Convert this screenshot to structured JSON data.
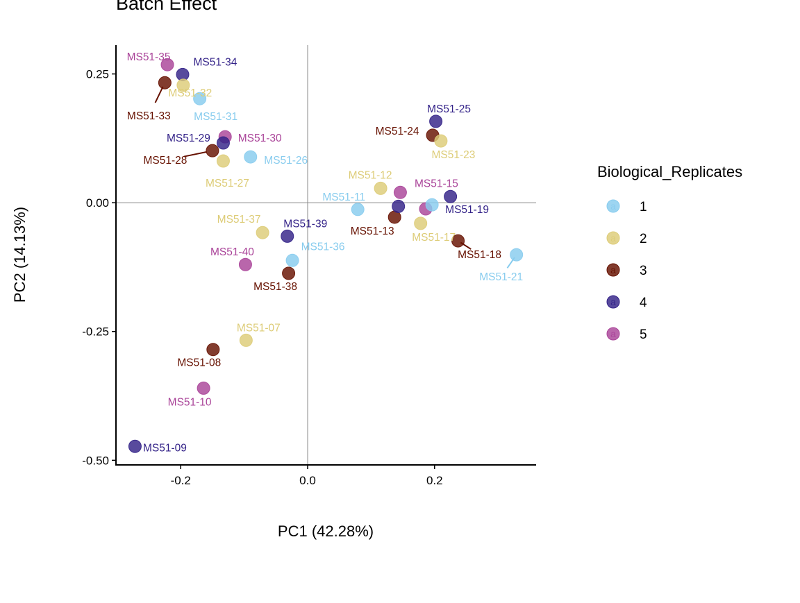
{
  "chart_data": {
    "type": "scatter",
    "title": "Batch Effect",
    "xlabel": "PC1 (42.28%)",
    "ylabel": "PC2 (14.13%)",
    "xlim": [
      -0.302,
      0.36
    ],
    "ylim": [
      -0.509,
      0.306
    ],
    "xticks": [
      -0.2,
      0.0,
      0.2
    ],
    "xtick_labels": [
      "-0.2",
      "0.0",
      "0.2"
    ],
    "yticks": [
      0.25,
      0.0,
      -0.25,
      -0.5
    ],
    "ytick_labels": [
      "0.25",
      "0.00",
      "-0.25",
      "-0.50"
    ],
    "reference_lines": {
      "x": 0,
      "y": 0
    },
    "grid": false,
    "legend": {
      "title": "Biological_Replicates",
      "placement": "right",
      "entries": [
        "1",
        "2",
        "3",
        "4",
        "5"
      ]
    },
    "colors": {
      "1": "#88CCEE",
      "2": "#DDCC77",
      "3": "#661100",
      "4": "#332288",
      "5": "#AA4499"
    },
    "points": [
      {
        "label": "MS51-35",
        "group": "5",
        "x": -0.221,
        "y": 0.268
      },
      {
        "label": "MS51-34",
        "group": "4",
        "x": -0.197,
        "y": 0.249
      },
      {
        "label": "MS51-33",
        "group": "3",
        "x": -0.225,
        "y": 0.233
      },
      {
        "label": "MS51-32",
        "group": "2",
        "x": -0.196,
        "y": 0.228
      },
      {
        "label": "MS51-31",
        "group": "1",
        "x": -0.17,
        "y": 0.202
      },
      {
        "label": "MS51-25",
        "group": "4",
        "x": 0.202,
        "y": 0.158
      },
      {
        "label": "MS51-24",
        "group": "3",
        "x": 0.197,
        "y": 0.131
      },
      {
        "label": "MS51-23",
        "group": "2",
        "x": 0.21,
        "y": 0.12
      },
      {
        "label": "MS51-30",
        "group": "5",
        "x": -0.13,
        "y": 0.128
      },
      {
        "label": "MS51-29",
        "group": "4",
        "x": -0.133,
        "y": 0.116
      },
      {
        "label": "MS51-28",
        "group": "3",
        "x": -0.15,
        "y": 0.101
      },
      {
        "label": "MS51-27",
        "group": "2",
        "x": -0.133,
        "y": 0.081
      },
      {
        "label": "MS51-26",
        "group": "1",
        "x": -0.09,
        "y": 0.089
      },
      {
        "label": "MS51-12",
        "group": "2",
        "x": 0.115,
        "y": 0.028
      },
      {
        "label": "MS51-15",
        "group": "5",
        "x": 0.146,
        "y": 0.02
      },
      {
        "label": "MS51-19",
        "group": "4",
        "x": 0.225,
        "y": 0.012
      },
      {
        "label": "MS51-11",
        "group": "1",
        "x": 0.079,
        "y": -0.013
      },
      {
        "label": "MS51-13",
        "group": "3",
        "x": 0.137,
        "y": -0.028
      },
      {
        "label": "MS51-17",
        "group": "2",
        "x": 0.178,
        "y": -0.04
      },
      {
        "label": "MS51-18",
        "group": "3",
        "x": 0.237,
        "y": -0.074
      },
      {
        "label": "MS51-21",
        "group": "1",
        "x": 0.329,
        "y": -0.101
      },
      {
        "label": "MS51-37",
        "group": "2",
        "x": -0.071,
        "y": -0.058
      },
      {
        "label": "MS51-39",
        "group": "4",
        "x": -0.032,
        "y": -0.065
      },
      {
        "label": "MS51-36",
        "group": "1",
        "x": -0.024,
        "y": -0.112
      },
      {
        "label": "MS51-40",
        "group": "5",
        "x": -0.098,
        "y": -0.12
      },
      {
        "label": "MS51-38",
        "group": "3",
        "x": -0.03,
        "y": -0.137
      },
      {
        "label": "MS51-07",
        "group": "2",
        "x": -0.097,
        "y": -0.267
      },
      {
        "label": "MS51-08",
        "group": "3",
        "x": -0.149,
        "y": -0.285
      },
      {
        "label": "MS51-10",
        "group": "5",
        "x": -0.164,
        "y": -0.36
      },
      {
        "label": "MS51-09",
        "group": "4",
        "x": -0.272,
        "y": -0.473
      },
      {
        "label": "",
        "group": "4",
        "x": 0.143,
        "y": -0.007
      },
      {
        "label": "",
        "group": "5",
        "x": 0.186,
        "y": -0.012
      },
      {
        "label": "",
        "group": "1",
        "x": 0.196,
        "y": -0.004
      }
    ]
  }
}
